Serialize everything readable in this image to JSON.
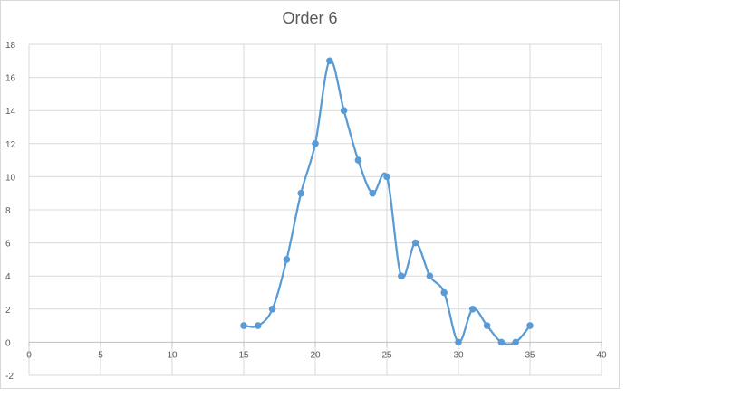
{
  "chart_data": {
    "type": "scatter",
    "title": "Order 6",
    "xlabel": "",
    "ylabel": "",
    "xlim": [
      0,
      40
    ],
    "ylim": [
      -2,
      18
    ],
    "x_ticks": [
      0,
      5,
      10,
      15,
      20,
      25,
      30,
      35,
      40
    ],
    "y_ticks": [
      -2,
      0,
      2,
      4,
      6,
      8,
      10,
      12,
      14,
      16,
      18
    ],
    "grid": true,
    "smooth_line": true,
    "series": [
      {
        "color": "#5b9bd5",
        "x": [
          15,
          16,
          17,
          18,
          19,
          20,
          21,
          22,
          23,
          24,
          25,
          26,
          27,
          28,
          29,
          30,
          31,
          32,
          33,
          34,
          35
        ],
        "y": [
          1,
          1,
          2,
          5,
          9,
          12,
          17,
          14,
          11,
          9,
          10,
          4,
          6,
          4,
          3,
          0,
          2,
          1,
          0,
          0,
          1
        ]
      }
    ]
  }
}
